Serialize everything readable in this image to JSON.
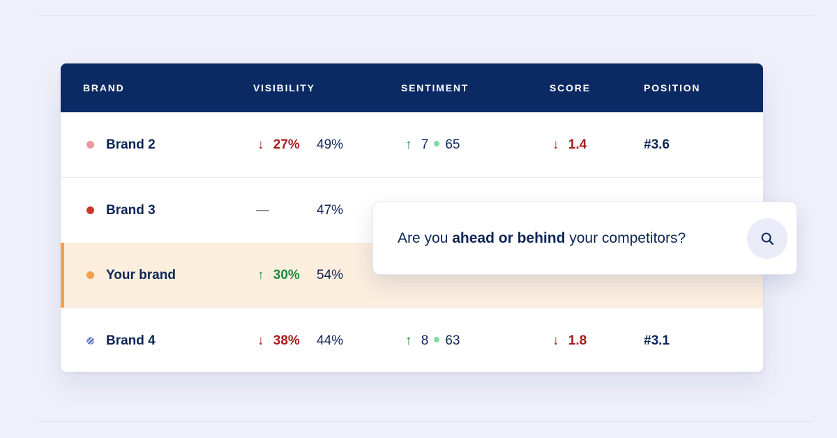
{
  "table": {
    "headers": [
      "BRAND",
      "VISIBILITY",
      "SENTIMENT",
      "SCORE",
      "POSITION"
    ],
    "rows": [
      {
        "brand": "Brand 2",
        "dot_color": "#ec97a0",
        "vis_arrow": "↓",
        "vis_change": "27%",
        "vis_value": "49%",
        "sent_arrow": "↑",
        "sent_change": "7",
        "sent_value": "65",
        "score_arrow": "↓",
        "score_value": "1.4",
        "position": "#3.6"
      },
      {
        "brand": "Brand 3",
        "dot_color": "#c8362c",
        "vis_arrow": "—",
        "vis_change": "",
        "vis_value": "47%"
      },
      {
        "brand": "Your brand",
        "dot_color": "#f4a04d",
        "highlighted": true,
        "vis_arrow": "↑",
        "vis_change": "30%",
        "vis_value": "54%"
      },
      {
        "brand": "Brand 4",
        "dot_color": "#5d6fb6",
        "vis_arrow": "↓",
        "vis_change": "38%",
        "vis_value": "44%",
        "sent_arrow": "↑",
        "sent_change": "8",
        "sent_value": "63",
        "score_arrow": "↓",
        "score_value": "1.8",
        "position": "#3.1"
      }
    ]
  },
  "search_popup": {
    "prefix": "Are you ",
    "emphasis": "ahead or behind",
    "suffix": " your competitors?",
    "button_icon": "search-icon"
  },
  "colors": {
    "header_bg": "#0b2a63",
    "text": "#0d2557",
    "up": "#1e8a3e",
    "down": "#a81b1b",
    "highlight_row": "#fbeedd",
    "highlight_accent": "#f4a04d",
    "sentiment_dot": "#7fdca0"
  }
}
